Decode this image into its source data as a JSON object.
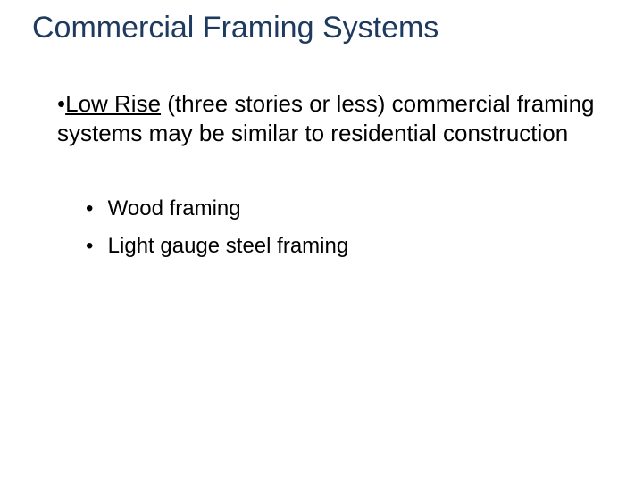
{
  "title": {
    "text": "Commercial Framing Systems",
    "color": "#1e3a5f",
    "fontsize": 34
  },
  "main": {
    "bullet_char": "•",
    "underlined_lead": "Low Rise",
    "rest": " (three stories or less) commercial framing systems may be similar to residential construction",
    "fontsize": 26,
    "color": "#000000"
  },
  "sub": {
    "bullet_char": "•",
    "items": [
      "Wood framing",
      "Light gauge steel framing"
    ],
    "fontsize": 24,
    "color": "#000000"
  },
  "background_color": "#ffffff"
}
